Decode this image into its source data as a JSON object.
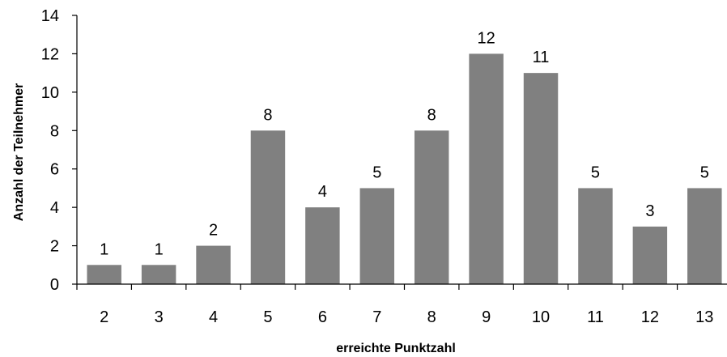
{
  "chart_data": {
    "type": "bar",
    "title": "",
    "xlabel": "erreichte Punktzahl",
    "ylabel": "Anzahl der Teilnehmer",
    "categories": [
      "2",
      "3",
      "4",
      "5",
      "6",
      "7",
      "8",
      "9",
      "10",
      "11",
      "12",
      "13"
    ],
    "values": [
      1,
      1,
      2,
      8,
      4,
      5,
      8,
      12,
      11,
      5,
      3,
      5
    ],
    "ylim": [
      0,
      14
    ],
    "yticks": [
      0,
      2,
      4,
      6,
      8,
      10,
      12,
      14
    ],
    "grid": false,
    "legend": "none",
    "bar_color": "#808080",
    "data_labels": true
  }
}
